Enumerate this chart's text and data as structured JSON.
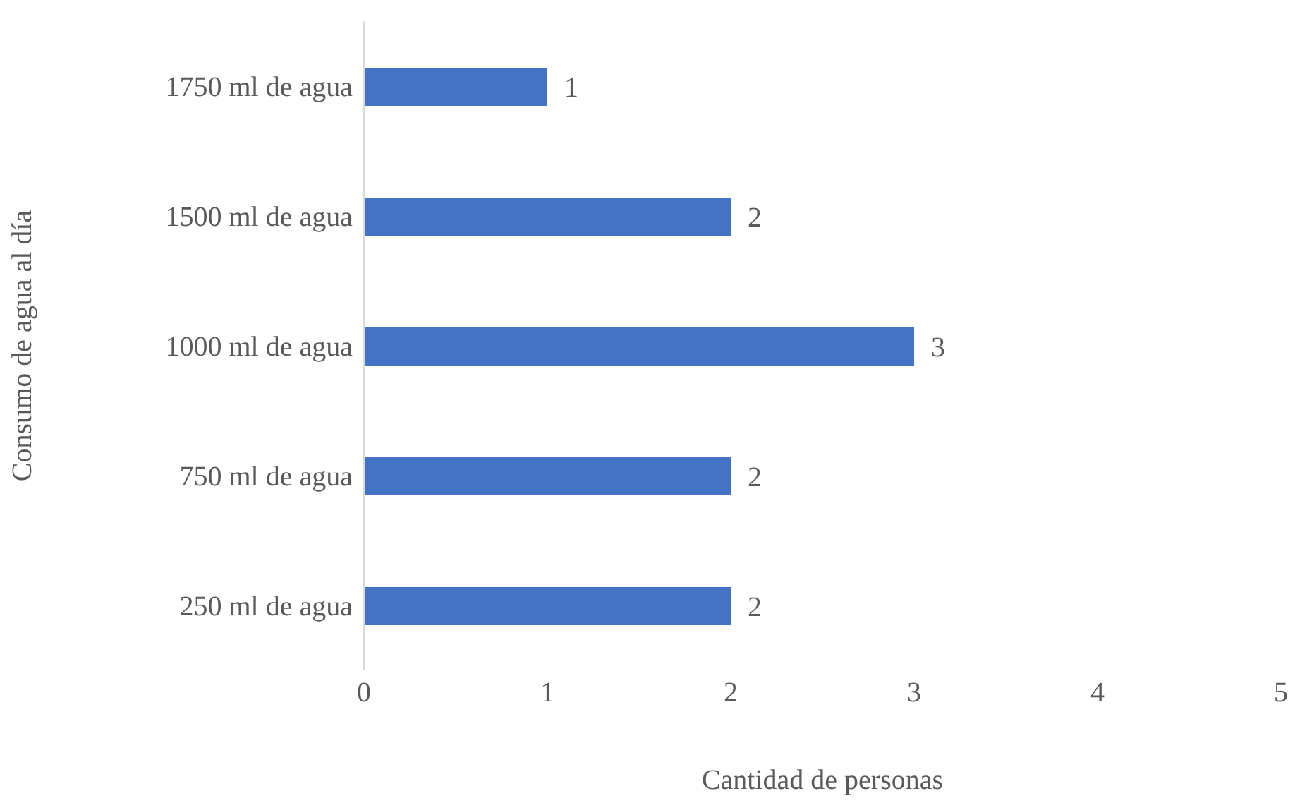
{
  "chart_data": {
    "type": "bar",
    "orientation": "horizontal",
    "xlabel": "Cantidad de personas",
    "ylabel": "Consumo de agua al día",
    "categories": [
      "1750 ml de agua",
      "1500 ml de agua",
      "1000 ml de agua",
      "750 ml de agua",
      "250 ml de agua"
    ],
    "values": [
      1,
      2,
      3,
      2,
      2
    ],
    "color": "#4472c4",
    "xlim": [
      0,
      5
    ],
    "xticks": [
      0,
      1,
      2,
      3,
      4,
      5
    ],
    "grid": false,
    "legend": false,
    "data_labels": true
  }
}
